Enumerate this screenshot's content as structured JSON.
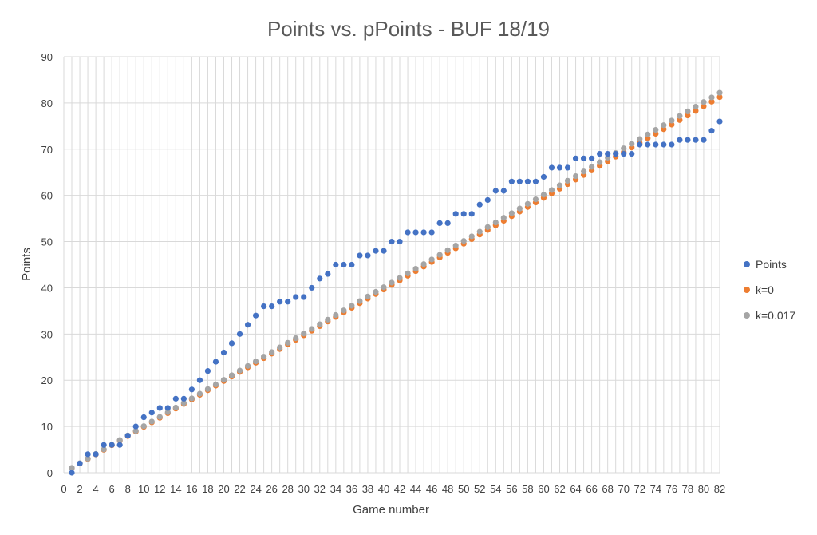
{
  "chart_data": {
    "type": "scatter",
    "title": "Points vs. pPoints - BUF 18/19",
    "xlabel": "Game number",
    "ylabel": "Points",
    "xlim": [
      0,
      82
    ],
    "ylim": [
      0,
      90
    ],
    "x_ticks": [
      0,
      1,
      2,
      3,
      4,
      5,
      6,
      7,
      8,
      9,
      10,
      11,
      12,
      13,
      14,
      15,
      16,
      17,
      18,
      19,
      20,
      21,
      22,
      23,
      24,
      25,
      26,
      27,
      28,
      29,
      30,
      31,
      32,
      33,
      34,
      35,
      36,
      37,
      38,
      39,
      40,
      41,
      42,
      43,
      44,
      45,
      46,
      47,
      48,
      49,
      50,
      51,
      52,
      53,
      54,
      55,
      56,
      57,
      58,
      59,
      60,
      61,
      62,
      63,
      64,
      65,
      66,
      67,
      68,
      69,
      70,
      71,
      72,
      73,
      74,
      75,
      76,
      77,
      78,
      79,
      80,
      81,
      82
    ],
    "y_ticks": [
      0,
      10,
      20,
      30,
      40,
      50,
      60,
      70,
      80,
      90
    ],
    "grid": true,
    "legend_position": "right",
    "series": [
      {
        "name": "Points",
        "color": "#4472C4",
        "points": [
          [
            1,
            0
          ],
          [
            2,
            2
          ],
          [
            3,
            4
          ],
          [
            4,
            4
          ],
          [
            5,
            6
          ],
          [
            6,
            6
          ],
          [
            7,
            6
          ],
          [
            8,
            8
          ],
          [
            9,
            10
          ],
          [
            10,
            12
          ],
          [
            11,
            13
          ],
          [
            12,
            14
          ],
          [
            13,
            14
          ],
          [
            14,
            16
          ],
          [
            15,
            16
          ],
          [
            16,
            18
          ],
          [
            17,
            20
          ],
          [
            18,
            22
          ],
          [
            19,
            24
          ],
          [
            20,
            26
          ],
          [
            21,
            28
          ],
          [
            22,
            30
          ],
          [
            23,
            32
          ],
          [
            24,
            34
          ],
          [
            25,
            36
          ],
          [
            26,
            36
          ],
          [
            27,
            37
          ],
          [
            28,
            37
          ],
          [
            29,
            38
          ],
          [
            30,
            38
          ],
          [
            31,
            40
          ],
          [
            32,
            42
          ],
          [
            33,
            43
          ],
          [
            34,
            45
          ],
          [
            35,
            45
          ],
          [
            36,
            45
          ],
          [
            37,
            47
          ],
          [
            38,
            47
          ],
          [
            39,
            48
          ],
          [
            40,
            48
          ],
          [
            41,
            50
          ],
          [
            42,
            50
          ],
          [
            43,
            52
          ],
          [
            44,
            52
          ],
          [
            45,
            52
          ],
          [
            46,
            52
          ],
          [
            47,
            54
          ],
          [
            48,
            54
          ],
          [
            49,
            56
          ],
          [
            50,
            56
          ],
          [
            51,
            56
          ],
          [
            52,
            58
          ],
          [
            53,
            59
          ],
          [
            54,
            61
          ],
          [
            55,
            61
          ],
          [
            56,
            63
          ],
          [
            57,
            63
          ],
          [
            58,
            63
          ],
          [
            59,
            63
          ],
          [
            60,
            64
          ],
          [
            61,
            66
          ],
          [
            62,
            66
          ],
          [
            63,
            66
          ],
          [
            64,
            68
          ],
          [
            65,
            68
          ],
          [
            66,
            68
          ],
          [
            67,
            69
          ],
          [
            68,
            69
          ],
          [
            69,
            69
          ],
          [
            70,
            69
          ],
          [
            71,
            69
          ],
          [
            72,
            71
          ],
          [
            73,
            71
          ],
          [
            74,
            71
          ],
          [
            75,
            71
          ],
          [
            76,
            71
          ],
          [
            77,
            72
          ],
          [
            78,
            72
          ],
          [
            79,
            72
          ],
          [
            80,
            72
          ],
          [
            81,
            74
          ],
          [
            82,
            76
          ]
        ]
      },
      {
        "name": "k=0",
        "color": "#ED7D31",
        "slope": 0.991,
        "x_range": [
          1,
          82
        ]
      },
      {
        "name": "k=0.017",
        "color": "#A5A5A5",
        "y_at_1": 1.05,
        "y_at_82": 82.2,
        "x_range": [
          1,
          82
        ]
      }
    ]
  }
}
